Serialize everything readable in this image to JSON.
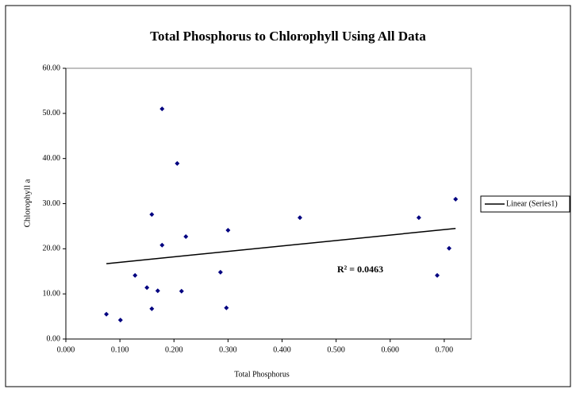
{
  "chart_data": {
    "type": "scatter",
    "title": "Total Phosphorus to Chlorophyll Using All Data",
    "x_label": "Total Phosphorus",
    "y_label": "Chlorophyll a",
    "series": [
      {
        "color": "#000080",
        "x": [
          0.075,
          0.101,
          0.128,
          0.15,
          0.159,
          0.159,
          0.17,
          0.178,
          0.178,
          0.206,
          0.214,
          0.222,
          0.286,
          0.297,
          0.3,
          0.433,
          0.653,
          0.687,
          0.709,
          0.721
        ],
        "values": [
          5.5,
          4.2,
          14.1,
          11.4,
          6.7,
          27.6,
          10.7,
          20.8,
          51.0,
          38.9,
          10.6,
          22.7,
          14.8,
          6.9,
          24.1,
          26.9,
          26.9,
          14.1,
          20.1,
          31.0
        ]
      }
    ],
    "trendline": {
      "name": "Linear (Series1)",
      "color": "#000000",
      "x": [
        0.075,
        0.721
      ],
      "values": [
        16.7,
        24.5
      ]
    },
    "annotation": "R² = 0.0463",
    "xlim": [
      0,
      0.75
    ],
    "xticks": [
      {
        "value": 0,
        "label": "0.000"
      },
      {
        "value": 0.1,
        "label": "0.100"
      },
      {
        "value": 0.2,
        "label": "0.200"
      },
      {
        "value": 0.3,
        "label": "0.300"
      },
      {
        "value": 0.4,
        "label": "0.400"
      },
      {
        "value": 0.5,
        "label": "0.500"
      },
      {
        "value": 0.6,
        "label": "0.600"
      },
      {
        "value": 0.7,
        "label": "0.700"
      }
    ],
    "ylim": [
      0,
      60
    ],
    "yticks": [
      {
        "value": 0,
        "label": "0.00"
      },
      {
        "value": 10,
        "label": "10.00"
      },
      {
        "value": 20,
        "label": "20.00"
      },
      {
        "value": 30,
        "label": "30.00"
      },
      {
        "value": 40,
        "label": "40.00"
      },
      {
        "value": 50,
        "label": "50.00"
      },
      {
        "value": 60,
        "label": "60.00"
      }
    ],
    "legend": "right"
  }
}
